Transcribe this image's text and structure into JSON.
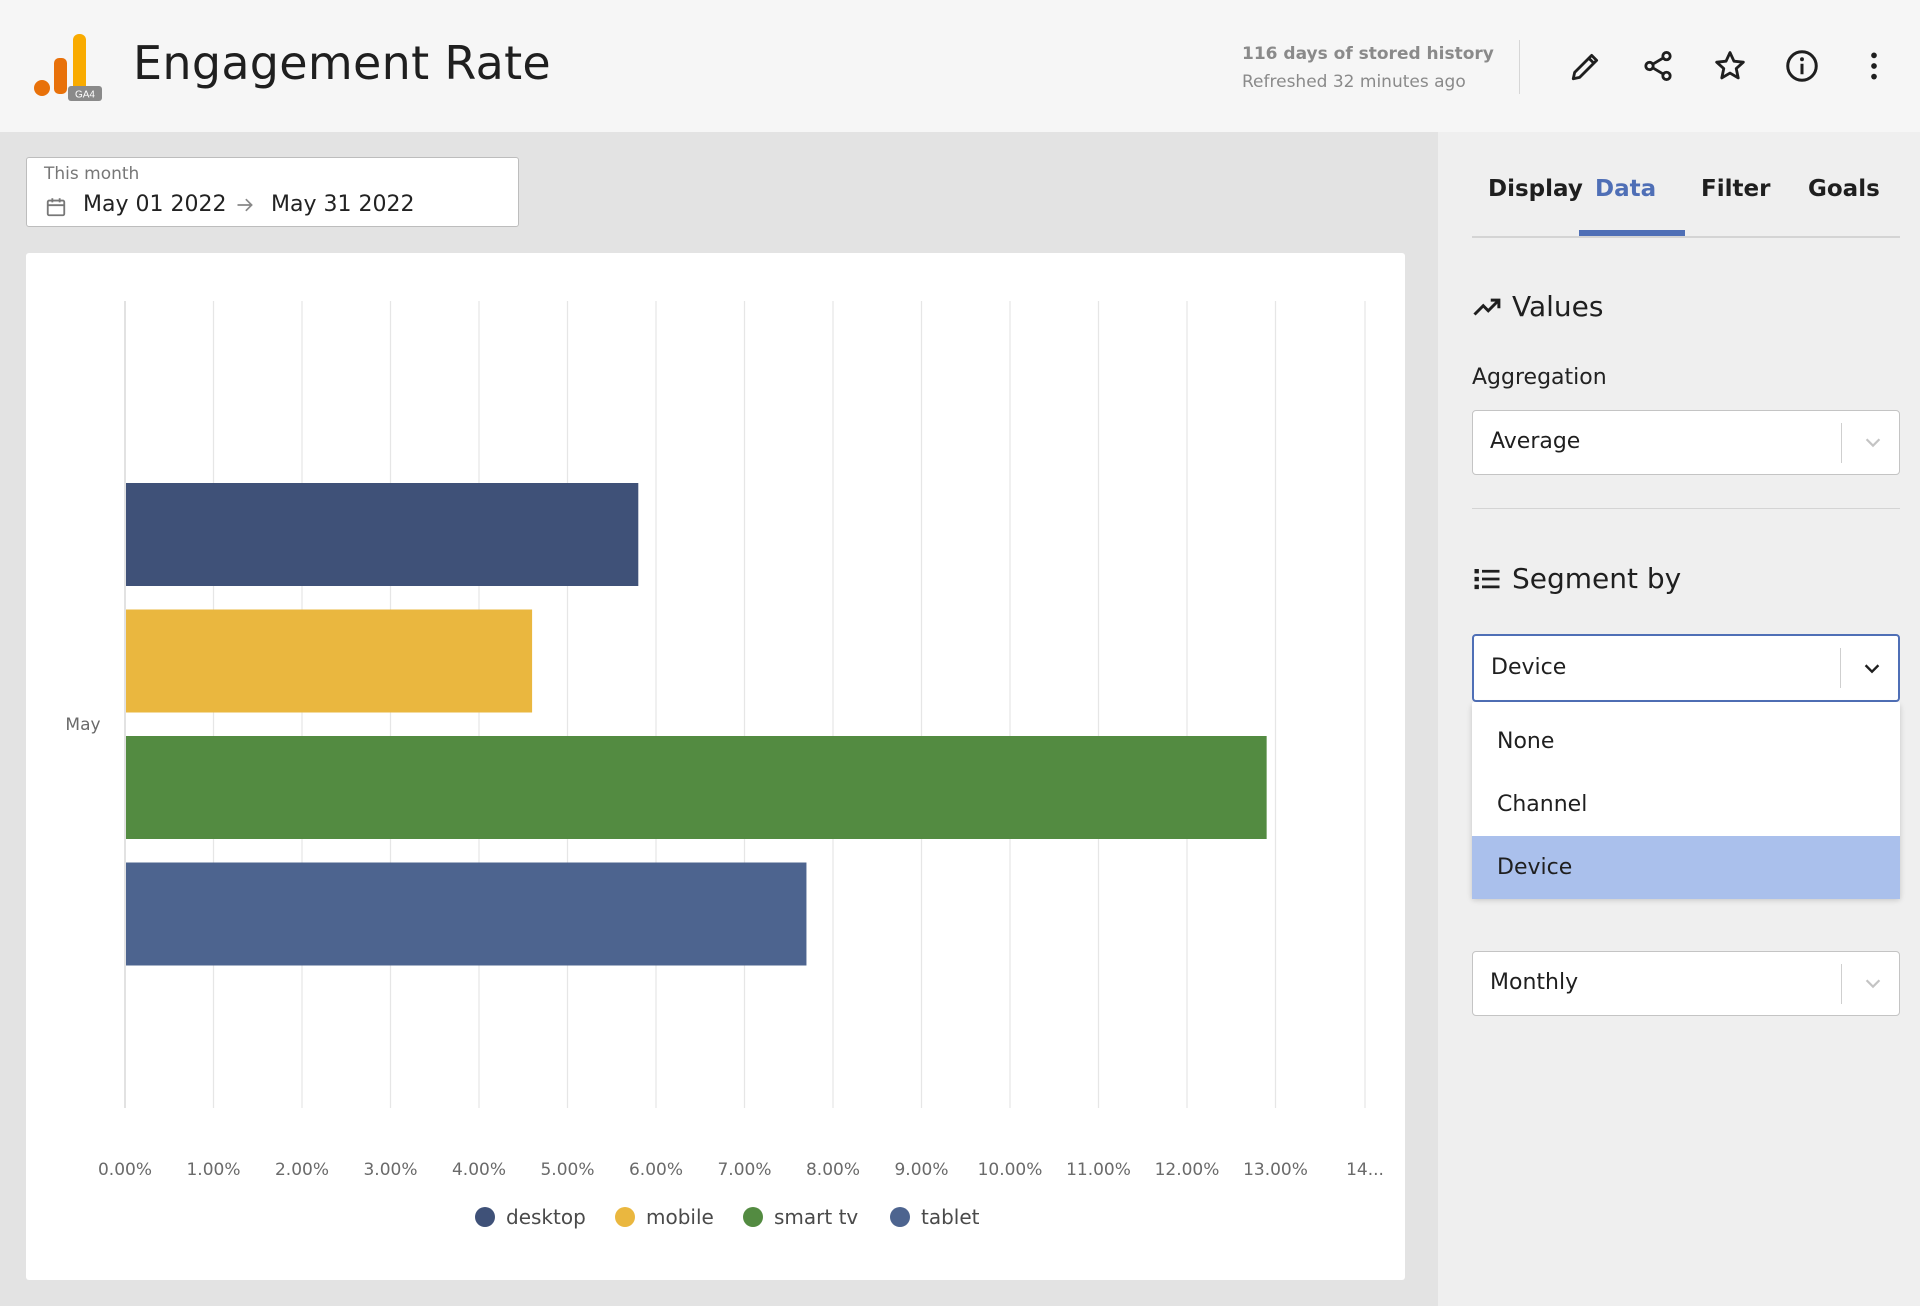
{
  "header": {
    "title": "Engagement Rate",
    "logo_badge": "GA4",
    "history_text": "116 days of stored history",
    "refreshed_text": "Refreshed 32 minutes ago"
  },
  "date_range": {
    "label": "This month",
    "start": "May 01 2022",
    "end": "May 31 2022"
  },
  "tabs": [
    {
      "label": "Display",
      "active": false
    },
    {
      "label": "Data",
      "active": true
    },
    {
      "label": "Filter",
      "active": false
    },
    {
      "label": "Goals",
      "active": false
    }
  ],
  "panel": {
    "values_title": "Values",
    "aggregation_label": "Aggregation",
    "aggregation_value": "Average",
    "segment_title": "Segment by",
    "segment_value": "Device",
    "segment_options": [
      "None",
      "Channel",
      "Device"
    ],
    "segment_selected": "Device",
    "period_value": "Monthly"
  },
  "colors": {
    "accent": "#4f6fb6",
    "desktop": "#3f5178",
    "mobile": "#eab73f",
    "smart_tv": "#538b41",
    "tablet": "#4d648f"
  },
  "chart_data": {
    "type": "bar",
    "orientation": "horizontal",
    "categories": [
      "May"
    ],
    "series": [
      {
        "name": "desktop",
        "values": [
          5.8
        ],
        "color": "#3f5178"
      },
      {
        "name": "mobile",
        "values": [
          4.6
        ],
        "color": "#eab73f"
      },
      {
        "name": "smart tv",
        "values": [
          12.9
        ],
        "color": "#538b41"
      },
      {
        "name": "tablet",
        "values": [
          7.7
        ],
        "color": "#4d648f"
      }
    ],
    "x_ticks": [
      "0.00%",
      "1.00%",
      "2.00%",
      "3.00%",
      "4.00%",
      "5.00%",
      "6.00%",
      "7.00%",
      "8.00%",
      "9.00%",
      "10.00%",
      "11.00%",
      "12.00%",
      "13.00%",
      "14..."
    ],
    "xlim": [
      0,
      14
    ],
    "grid": true,
    "legend_position": "bottom"
  }
}
